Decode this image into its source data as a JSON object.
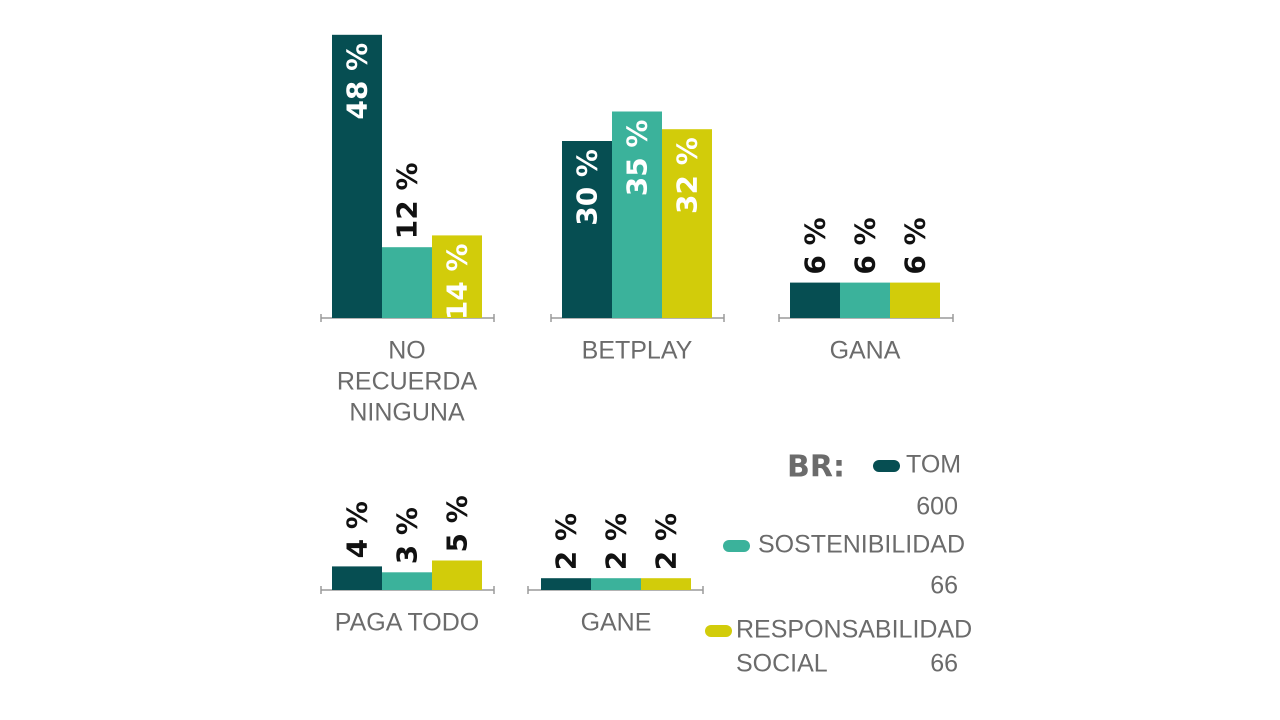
{
  "chart_data": {
    "type": "bar",
    "categories": [
      [
        "NO",
        "RECUERDA",
        "NINGUNA"
      ],
      [
        "BETPLAY"
      ],
      [
        "GANA"
      ],
      [
        "PAGA TODO"
      ],
      [
        "GANE"
      ]
    ],
    "value_suffix": " %",
    "series": [
      {
        "name": "TOM",
        "base": "600",
        "color": "#064e52",
        "values": [
          48,
          30,
          6,
          4,
          2
        ]
      },
      {
        "name": "SOSTENIBILIDAD",
        "base": "66",
        "color": "#3bb29b",
        "values": [
          12,
          35,
          6,
          3,
          2
        ]
      },
      {
        "name": "RESPONSABILIDAD SOCIAL",
        "name_lines": [
          "RESPONSABILIDAD",
          "SOCIAL"
        ],
        "base": "66",
        "color": "#d2cc0a",
        "values": [
          14,
          32,
          6,
          5,
          2
        ]
      }
    ],
    "legend": {
      "title": "BR:",
      "placement": "bottom-right"
    },
    "value_label_colors": {
      "inside": "#ffffff",
      "outside": "#111111"
    },
    "axis_color": "#9a9a9a",
    "grid": false
  }
}
